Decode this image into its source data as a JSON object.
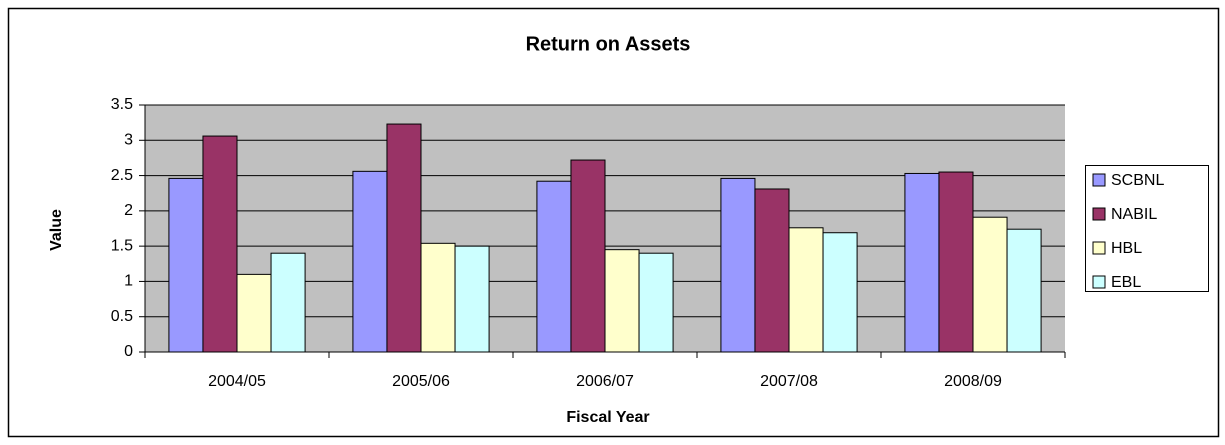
{
  "chart_data": {
    "type": "bar",
    "title": "Return on Assets",
    "x_label": "Fiscal Year",
    "y_label": "Value",
    "categories": [
      "2004/05",
      "2005/06",
      "2006/07",
      "2007/08",
      "2008/09"
    ],
    "series": [
      {
        "name": "SCBNL",
        "color": "#9999ff",
        "values": [
          2.46,
          2.56,
          2.42,
          2.46,
          2.53
        ]
      },
      {
        "name": "NABIL",
        "color": "#993366",
        "values": [
          3.06,
          3.23,
          2.72,
          2.31,
          2.55
        ]
      },
      {
        "name": "HBL",
        "color": "#ffffcc",
        "values": [
          1.1,
          1.54,
          1.45,
          1.76,
          1.91
        ]
      },
      {
        "name": "EBL",
        "color": "#ccffff",
        "values": [
          1.4,
          1.5,
          1.4,
          1.69,
          1.74
        ]
      }
    ],
    "ylim": [
      0,
      3.5
    ],
    "yticks": [
      0,
      0.5,
      1,
      1.5,
      2,
      2.5,
      3,
      3.5
    ],
    "grid": true,
    "legend": "right",
    "plot_background": "#c0c0c0"
  }
}
